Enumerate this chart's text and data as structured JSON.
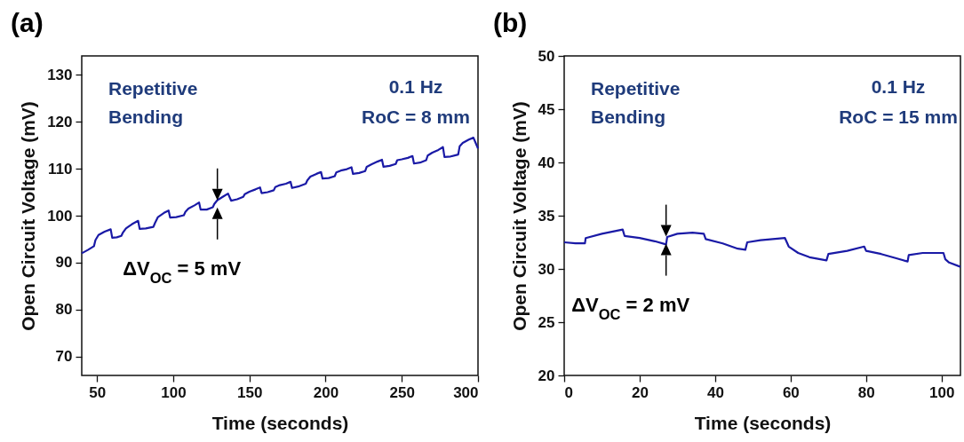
{
  "chart_data": [
    {
      "type": "line",
      "title": "(a)",
      "xlabel": "Time (seconds)",
      "ylabel": "Open Circuit Voltage (mV)",
      "xlim": [
        40,
        300
      ],
      "xticks": [
        50,
        100,
        150,
        200,
        250,
        300
      ],
      "ylim": [
        66,
        134
      ],
      "yticks": [
        70,
        80,
        90,
        100,
        110,
        120,
        130
      ],
      "grid": false,
      "marker": "none",
      "line_style": "solid",
      "annotations": [
        "Repetitive Bending",
        "0.1 Hz",
        "RoC = 8 mm",
        {
          "text": "ΔV$_{OC}$ = 5 mV",
          "x": 129,
          "y": 102.5
        }
      ],
      "series": [
        {
          "color": "#1a1aa6",
          "x": [
            40,
            44,
            48,
            49,
            51,
            55,
            59,
            60,
            63,
            66,
            67,
            69,
            73,
            77,
            78,
            82,
            87,
            88,
            90,
            94,
            97,
            98,
            102,
            107,
            108,
            110,
            114,
            117,
            118,
            122,
            126,
            127,
            129,
            133,
            136,
            138,
            142,
            146,
            147,
            150,
            154,
            157,
            158,
            162,
            166,
            167,
            170,
            174,
            177,
            178,
            182,
            187,
            188,
            190,
            194,
            197,
            198,
            202,
            206,
            207,
            210,
            214,
            217,
            218,
            222,
            226,
            227,
            230,
            234,
            237,
            238,
            242,
            246,
            247,
            250,
            254,
            257,
            258,
            262,
            266,
            267,
            270,
            274,
            277,
            278,
            282,
            287,
            288,
            290,
            294,
            297,
            300
          ],
          "values": [
            92,
            92.7,
            93.5,
            94.8,
            95.9,
            96.6,
            97.1,
            95.3,
            95.4,
            95.7,
            96.4,
            97.3,
            98.2,
            98.9,
            97.2,
            97.3,
            97.6,
            98.4,
            99.7,
            100.6,
            101.1,
            99.6,
            99.7,
            100.1,
            100.8,
            101.5,
            102.2,
            102.8,
            101.3,
            101.3,
            101.8,
            102.5,
            103.3,
            104.1,
            104.7,
            103.2,
            103.5,
            104,
            104.6,
            105.1,
            105.6,
            106,
            104.8,
            105,
            105.4,
            106.1,
            106.5,
            106.8,
            107.2,
            105.9,
            106.2,
            106.8,
            107.5,
            108.3,
            108.9,
            109.3,
            107.9,
            108,
            108.4,
            109.2,
            109.6,
            109.9,
            110.3,
            108.9,
            109.1,
            109.5,
            110.4,
            110.9,
            111.5,
            111.9,
            110.4,
            110.6,
            111,
            111.8,
            112,
            112.3,
            112.7,
            111.1,
            111.3,
            111.8,
            112.8,
            113.4,
            114,
            114.6,
            112.5,
            112.6,
            113,
            114.8,
            115.5,
            116.2,
            116.6,
            114.3
          ]
        }
      ]
    },
    {
      "type": "line",
      "title": "(b)",
      "xlabel": "Time (seconds)",
      "ylabel": "Open Circuit Voltage (mV)",
      "xlim": [
        0,
        105
      ],
      "xticks": [
        0,
        20,
        40,
        60,
        80,
        100
      ],
      "ylim": [
        20,
        50
      ],
      "yticks": [
        20,
        25,
        30,
        35,
        40,
        45,
        50
      ],
      "grid": false,
      "marker": "none",
      "line_style": "solid",
      "annotations": [
        "Repetitive Bending",
        "0.1 Hz",
        "RoC = 15 mm",
        {
          "text": "ΔV$_{OC}$ = 2 mV",
          "x": 27,
          "y": 32.7
        }
      ],
      "series": [
        {
          "color": "#1a1aa6",
          "x": [
            0,
            3,
            5.5,
            5.7,
            10,
            15.5,
            16,
            20,
            24,
            27,
            27.3,
            30,
            34,
            37,
            37.5,
            42,
            46,
            48,
            48.5,
            52,
            58.5,
            59.5,
            62,
            65,
            69.5,
            70,
            75,
            79.5,
            80,
            84,
            88,
            91,
            91.3,
            95,
            100,
            100.5,
            101,
            102,
            105
          ],
          "values": [
            32.5,
            32.4,
            32.4,
            32.9,
            33.3,
            33.7,
            33.1,
            32.9,
            32.6,
            32.3,
            33,
            33.3,
            33.4,
            33.3,
            32.8,
            32.4,
            31.9,
            31.8,
            32.5,
            32.7,
            32.9,
            32.1,
            31.5,
            31.1,
            30.8,
            31.4,
            31.7,
            32.1,
            31.7,
            31.4,
            31,
            30.7,
            31.3,
            31.5,
            31.5,
            31.5,
            30.9,
            30.6,
            30.2
          ]
        }
      ]
    }
  ]
}
